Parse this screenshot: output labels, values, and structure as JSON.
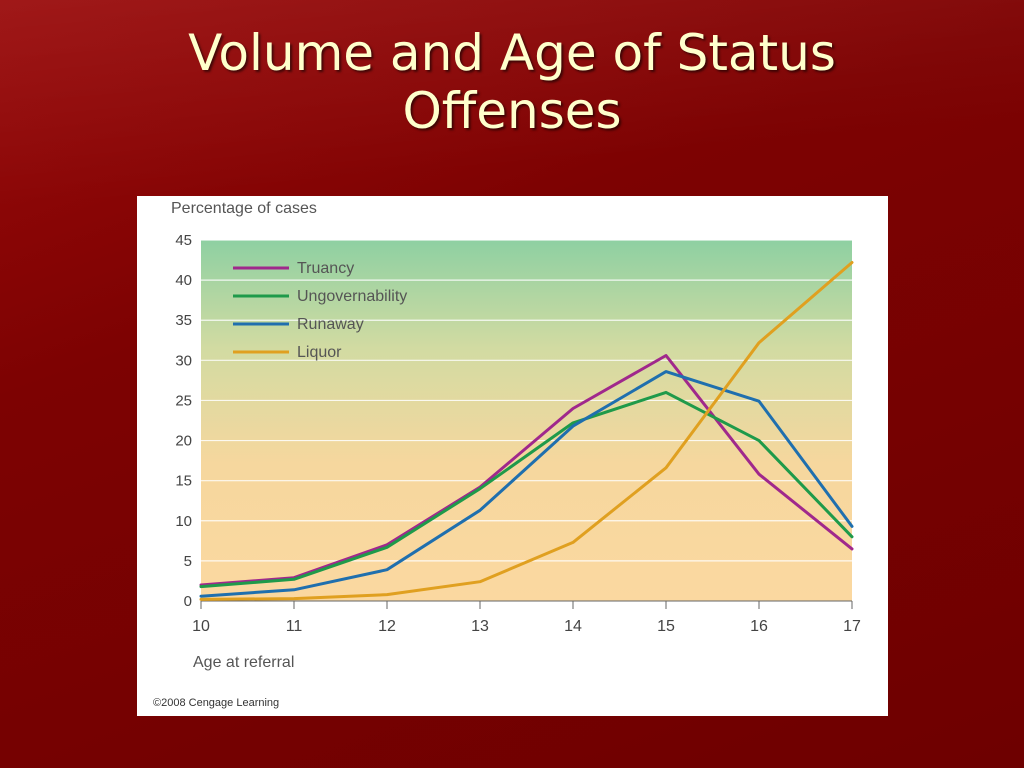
{
  "slide": {
    "title_line1": "Volume and Age of Status",
    "title_line2": "Offenses"
  },
  "chart_data": {
    "type": "line",
    "ylabel": "Percentage of cases",
    "xlabel": "Age at referral",
    "x": [
      10,
      11,
      12,
      13,
      14,
      15,
      16,
      17
    ],
    "xlim": [
      10,
      17
    ],
    "ylim": [
      0,
      45
    ],
    "yticks": [
      0,
      5,
      10,
      15,
      20,
      25,
      30,
      35,
      40,
      45
    ],
    "grid": true,
    "legend_position": "top-left",
    "series": [
      {
        "name": "Truancy",
        "color": "#a0288c",
        "values": [
          2.0,
          2.9,
          7.0,
          14.2,
          24.0,
          30.6,
          15.8,
          6.5
        ]
      },
      {
        "name": "Ungovernability",
        "color": "#1f9a4a",
        "values": [
          1.8,
          2.7,
          6.7,
          14.0,
          22.2,
          26.0,
          20.0,
          8.0
        ]
      },
      {
        "name": "Runaway",
        "color": "#1f6fae",
        "values": [
          0.6,
          1.4,
          3.9,
          11.3,
          21.8,
          28.6,
          24.9,
          9.3
        ]
      },
      {
        "name": "Liquor",
        "color": "#e0a020",
        "values": [
          0.2,
          0.3,
          0.8,
          2.4,
          7.3,
          16.6,
          32.2,
          42.2
        ]
      }
    ],
    "copyright": "©2008 Cengage Learning"
  }
}
